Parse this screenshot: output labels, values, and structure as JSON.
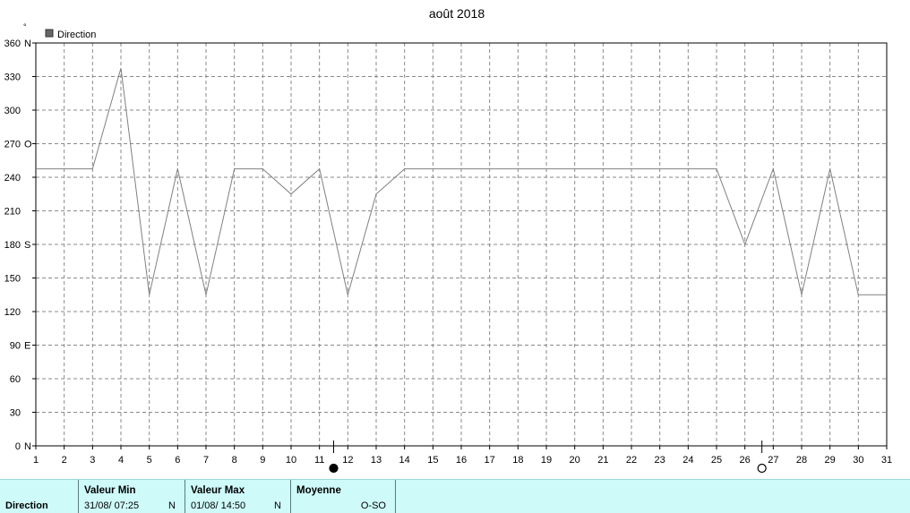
{
  "chart_data": {
    "type": "line",
    "title": "août 2018",
    "unit_symbol": "°",
    "legend": "Direction",
    "legend_position": "top-left",
    "grid": true,
    "x_ticks": [
      "1",
      "2",
      "3",
      "4",
      "5",
      "6",
      "7",
      "8",
      "9",
      "10",
      "11",
      "12",
      "13",
      "14",
      "15",
      "16",
      "17",
      "18",
      "19",
      "20",
      "21",
      "22",
      "23",
      "24",
      "25",
      "26",
      "27",
      "28",
      "29",
      "30",
      "31"
    ],
    "y_ticks": [
      "0",
      "30",
      "60",
      "90",
      "120",
      "150",
      "180",
      "210",
      "240",
      "270",
      "300",
      "330",
      "360"
    ],
    "y_compass": {
      "0": "N",
      "90": "E",
      "180": "S",
      "270": "O",
      "360": "N"
    },
    "xlim": [
      1,
      31
    ],
    "ylim": [
      0,
      360
    ],
    "series": [
      {
        "name": "Direction",
        "color": "#808080",
        "x": [
          1,
          3,
          4,
          5,
          6,
          7,
          8,
          9,
          10,
          11,
          12,
          13,
          14,
          25,
          26,
          27,
          28,
          29,
          30,
          31
        ],
        "y": [
          247.5,
          247.5,
          337.5,
          135,
          247.5,
          135,
          247.5,
          247.5,
          225,
          247.5,
          135,
          225,
          247.5,
          247.5,
          180,
          247.5,
          135,
          247.5,
          135,
          135
        ]
      }
    ],
    "moon_phases": [
      {
        "day": 11.5,
        "phase": "new-moon"
      },
      {
        "day": 26.6,
        "phase": "full-moon"
      }
    ]
  },
  "summary": {
    "label": "Direction",
    "min_header": "Valeur Min",
    "min_value": "31/08/  07:25",
    "min_suffix": "N",
    "max_header": "Valeur Max",
    "max_value": "01/08/  14:50",
    "max_suffix": "N",
    "avg_header": "Moyenne",
    "avg_value": "O-SO"
  }
}
